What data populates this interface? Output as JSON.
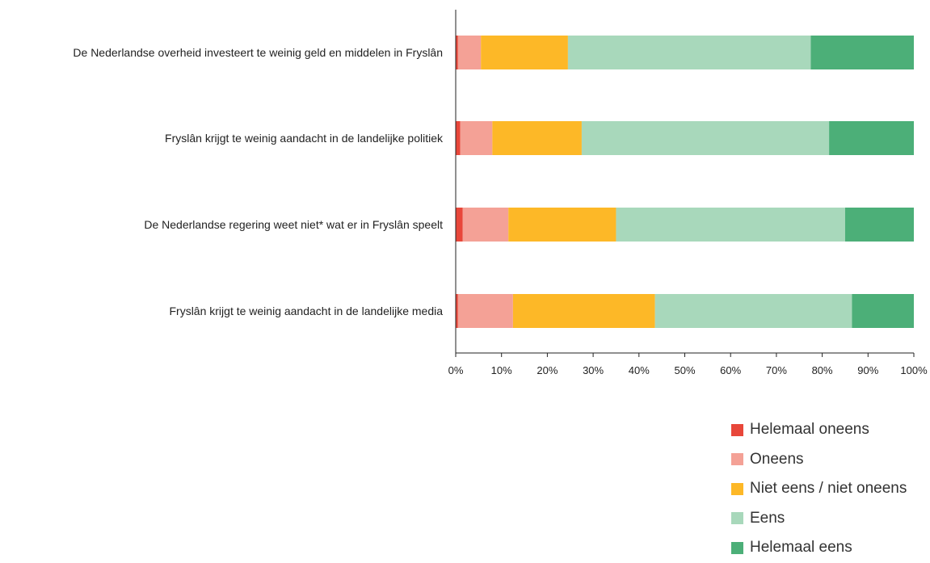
{
  "chart_data": {
    "type": "bar",
    "orientation": "horizontal",
    "stacked": "100%",
    "categories": [
      "De Nederlandse overheid investeert te weinig geld en middelen in Fryslân",
      "Fryslân krijgt te weinig aandacht in de landelijke politiek",
      "De Nederlandse regering weet niet* wat er in Fryslân speelt",
      "Fryslân krijgt te weinig aandacht in de landelijke media"
    ],
    "series": [
      {
        "name": "Helemaal oneens",
        "color": "#e8473a",
        "values": [
          0.5,
          1,
          1.5,
          0.5
        ]
      },
      {
        "name": "Oneens",
        "color": "#f4a196",
        "values": [
          5,
          7,
          10,
          12
        ]
      },
      {
        "name": "Niet eens / niet oneens",
        "color": "#fdb827",
        "values": [
          19,
          19.5,
          23.5,
          31
        ]
      },
      {
        "name": "Eens",
        "color": "#a8d8bb",
        "values": [
          53,
          54,
          50,
          43
        ]
      },
      {
        "name": "Helemaal eens",
        "color": "#4caf78",
        "values": [
          22.5,
          18.5,
          15,
          13.5
        ]
      }
    ],
    "xlim": [
      0,
      100
    ],
    "xticks": [
      "0%",
      "10%",
      "20%",
      "30%",
      "40%",
      "50%",
      "60%",
      "70%",
      "80%",
      "90%",
      "100%"
    ],
    "grid": false,
    "legend_position": "bottom-right"
  }
}
